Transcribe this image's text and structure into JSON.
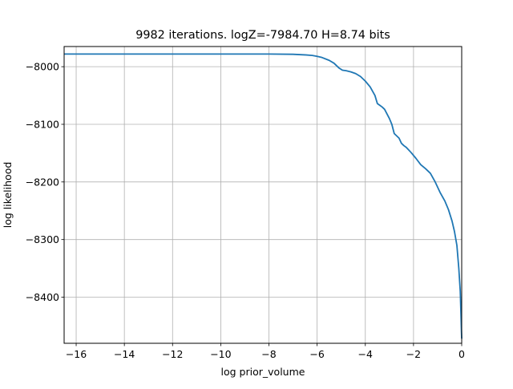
{
  "chart_data": {
    "type": "line",
    "title": "9982 iterations. logZ=-7984.70 H=8.74 bits",
    "xlabel": "log prior_volume",
    "ylabel": "log likelihood",
    "xlim": [
      -16.5,
      0.0
    ],
    "ylim": [
      -8480,
      -7965
    ],
    "xticks": [
      -16,
      -14,
      -12,
      -10,
      -8,
      -6,
      -4,
      -2,
      0
    ],
    "xtick_labels": [
      "−16",
      "−14",
      "−12",
      "−10",
      "−8",
      "−6",
      "−4",
      "−2",
      "0"
    ],
    "yticks": [
      -8000,
      -8100,
      -8200,
      -8300,
      -8400
    ],
    "ytick_labels": [
      "−8000",
      "−8100",
      "−8200",
      "−8300",
      "−8400"
    ],
    "grid": true,
    "line_color": "#1f77b4",
    "series": [
      {
        "x": [
          -16.5,
          -14,
          -12,
          -10,
          -8,
          -7,
          -6.5,
          -6.2,
          -6.0,
          -5.8,
          -5.5,
          -5.3,
          -5.1,
          -4.95,
          -4.8,
          -4.6,
          -4.4,
          -4.2,
          -4.0,
          -3.8,
          -3.6,
          -3.5,
          -3.4,
          -3.3,
          -3.2,
          -3.0,
          -2.9,
          -2.8,
          -2.7,
          -2.6,
          -2.5,
          -2.4,
          -2.3,
          -2.1,
          -1.9,
          -1.7,
          -1.5,
          -1.3,
          -1.1,
          -0.9,
          -0.7,
          -0.55,
          -0.4,
          -0.3,
          -0.2,
          -0.12,
          -0.06,
          -0.03,
          -0.01,
          0.0
        ],
        "y": [
          -7978,
          -7978,
          -7978,
          -7978,
          -7978,
          -7978.5,
          -7979.5,
          -7980.5,
          -7982,
          -7984,
          -7989,
          -7994,
          -8002,
          -8006,
          -8007,
          -8009,
          -8012,
          -8017,
          -8025,
          -8035,
          -8050,
          -8064,
          -8067,
          -8070,
          -8074,
          -8090,
          -8100,
          -8116,
          -8120,
          -8124,
          -8133,
          -8137,
          -8140,
          -8149,
          -8159,
          -8170,
          -8177,
          -8185,
          -8200,
          -8218,
          -8233,
          -8248,
          -8268,
          -8286,
          -8310,
          -8350,
          -8390,
          -8430,
          -8460,
          -8472
        ]
      }
    ]
  }
}
